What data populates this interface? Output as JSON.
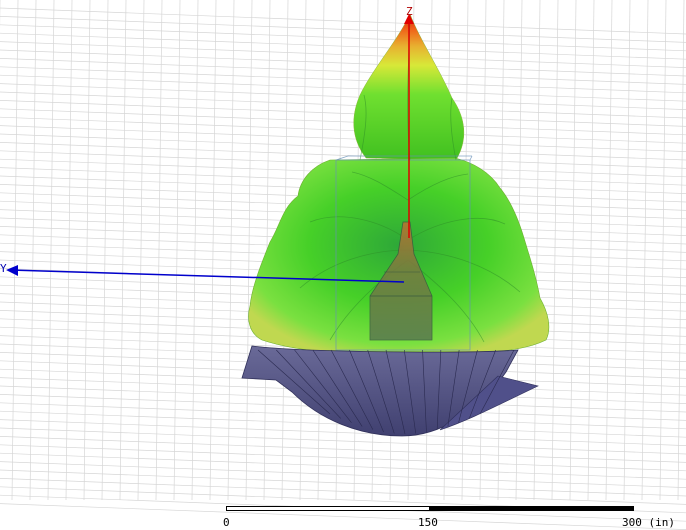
{
  "viewport": {
    "axes": {
      "z_label": "Z",
      "y_label": "Y"
    },
    "colors": {
      "background": "#ffffff",
      "grid": "#d4d4d4",
      "z_axis": "#e00000",
      "y_axis": "#0000cc",
      "pattern_top": "#d83010",
      "pattern_mid": "#e8e020",
      "pattern_body": "#40d020",
      "reflector": "#5a5a88"
    }
  },
  "scale_bar": {
    "ticks": [
      "0",
      "150",
      "300 (in)"
    ]
  }
}
